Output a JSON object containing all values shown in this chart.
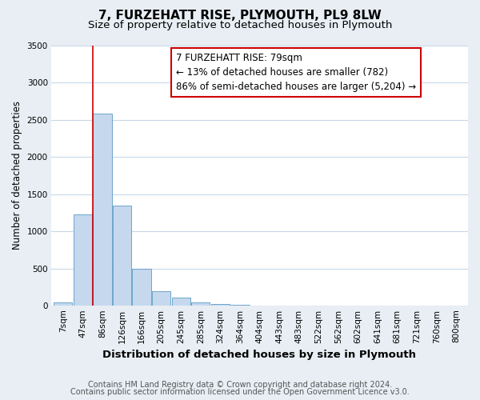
{
  "title": "7, FURZEHATT RISE, PLYMOUTH, PL9 8LW",
  "subtitle": "Size of property relative to detached houses in Plymouth",
  "bar_labels": [
    "7sqm",
    "47sqm",
    "86sqm",
    "126sqm",
    "166sqm",
    "205sqm",
    "245sqm",
    "285sqm",
    "324sqm",
    "364sqm",
    "404sqm",
    "443sqm",
    "483sqm",
    "522sqm",
    "562sqm",
    "602sqm",
    "641sqm",
    "681sqm",
    "721sqm",
    "760sqm",
    "800sqm"
  ],
  "bar_values": [
    50,
    1230,
    2580,
    1350,
    500,
    200,
    110,
    50,
    30,
    10,
    5,
    2,
    2,
    0,
    0,
    0,
    0,
    0,
    0,
    0,
    0
  ],
  "bar_color": "#c5d8ed",
  "bar_edge_color": "#5a9bc5",
  "ylim": [
    0,
    3500
  ],
  "yticks": [
    0,
    500,
    1000,
    1500,
    2000,
    2500,
    3000,
    3500
  ],
  "ylabel": "Number of detached properties",
  "xlabel": "Distribution of detached houses by size in Plymouth",
  "annotation_line1": "7 FURZEHATT RISE: 79sqm",
  "annotation_line2": "← 13% of detached houses are smaller (782)",
  "annotation_line3": "86% of semi-detached houses are larger (5,204) →",
  "annotation_box_color": "#ffffff",
  "annotation_box_edge_color": "#cc0000",
  "vline_color": "#cc0000",
  "vline_xindex": 1.52,
  "footer_line1": "Contains HM Land Registry data © Crown copyright and database right 2024.",
  "footer_line2": "Contains public sector information licensed under the Open Government Licence v3.0.",
  "background_color": "#e8eef4",
  "plot_bg_color": "#ffffff",
  "grid_color": "#c8d8e8",
  "title_fontsize": 11,
  "subtitle_fontsize": 9.5,
  "xlabel_fontsize": 9.5,
  "ylabel_fontsize": 8.5,
  "tick_fontsize": 7.5,
  "annotation_fontsize": 8.5,
  "footer_fontsize": 7
}
